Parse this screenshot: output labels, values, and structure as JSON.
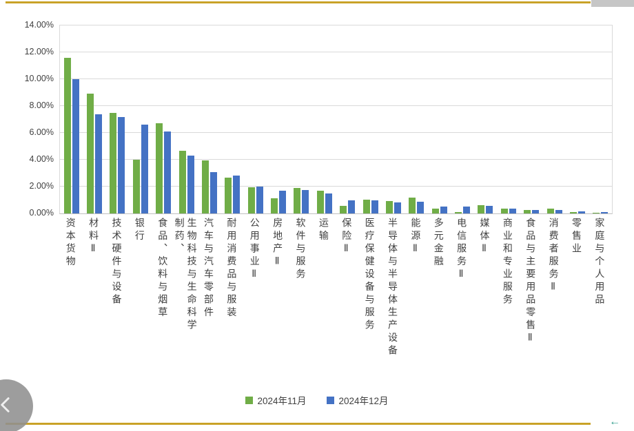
{
  "chart_data": {
    "type": "bar",
    "title": "",
    "categories": [
      "资本货物",
      "材料Ⅱ",
      "技术硬件与设备",
      "银行",
      "食品、饮料与烟草",
      "制药、\n生物科技与生命科学",
      "汽车与汽车零部件",
      "耐用消费品与服装",
      "公用事业Ⅱ",
      "房地产Ⅱ",
      "软件与服务",
      "运输",
      "保险Ⅱ",
      "医疗保健设备与服务",
      "半导体与半导体生产设备",
      "能源Ⅱ",
      "多元金融",
      "电信服务Ⅱ",
      "媒体Ⅱ",
      "商业和专业服务",
      "食品与主要用品零售Ⅱ",
      "消费者服务Ⅱ",
      "零售业",
      "家庭与个人用品"
    ],
    "series": [
      {
        "name": "2024年11月",
        "color": "#70AD47",
        "values": [
          11.6,
          8.9,
          7.5,
          4.0,
          6.7,
          4.65,
          3.95,
          2.65,
          1.95,
          1.15,
          1.9,
          1.7,
          0.55,
          1.05,
          0.9,
          1.2,
          0.35,
          0.1,
          0.6,
          0.35,
          0.25,
          0.35,
          0.1,
          0.05
        ]
      },
      {
        "name": "2024年12月",
        "color": "#4472C4",
        "values": [
          10.0,
          7.4,
          7.2,
          6.6,
          6.1,
          4.3,
          3.1,
          2.8,
          2.0,
          1.7,
          1.75,
          1.5,
          1.0,
          0.95,
          0.8,
          0.85,
          0.5,
          0.5,
          0.55,
          0.35,
          0.25,
          0.25,
          0.15,
          0.1
        ]
      }
    ],
    "xlabel": "",
    "ylabel": "",
    "ylim": [
      0,
      14
    ],
    "ytick_step": 2,
    "yticks": [
      "0.00%",
      "2.00%",
      "4.00%",
      "6.00%",
      "8.00%",
      "10.00%",
      "12.00%",
      "14.00%"
    ],
    "grid": true,
    "legend_position": "bottom"
  },
  "decorations": {
    "accent_line_color": "#C9A227",
    "corner_bar_color": "#C6C6C6",
    "gridline_color": "#D9D9D9",
    "prev_button_icon": "chevron-left",
    "cursor_arrow_icon": "left-arrow",
    "cursor_arrow_glyph": "←"
  }
}
